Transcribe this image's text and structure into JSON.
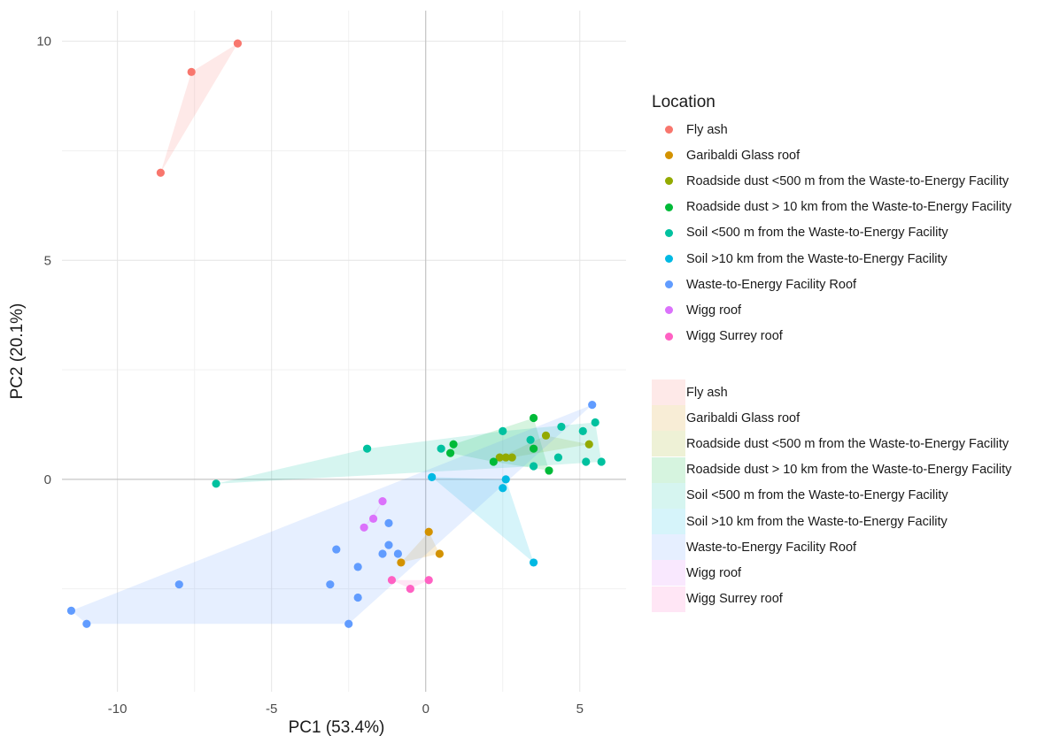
{
  "chart_data": {
    "type": "scatter",
    "xlabel": "PC1 (53.4%)",
    "ylabel": "PC2 (20.1%)",
    "xlim": [
      -11.8,
      6.5
    ],
    "ylim": [
      -4.85,
      10.7
    ],
    "x_ticks": [
      -10,
      -5,
      0,
      5
    ],
    "y_ticks": [
      0,
      5,
      10
    ],
    "x_tick_labels": [
      "-10",
      "-5",
      "0",
      "5"
    ],
    "y_tick_labels": [
      "0",
      "5",
      "10"
    ],
    "legend_title": "Location",
    "legend_placement": "right",
    "grid": true,
    "hulls": true,
    "series": [
      {
        "name": "Fly ash",
        "color": "#F8766D",
        "points": [
          [
            -6.1,
            9.95
          ],
          [
            -7.6,
            9.3
          ],
          [
            -8.6,
            7.0
          ]
        ]
      },
      {
        "name": "Garibaldi Glass roof",
        "color": "#D39200",
        "points": [
          [
            0.1,
            -1.2
          ],
          [
            0.45,
            -1.7
          ],
          [
            -0.8,
            -1.9
          ]
        ]
      },
      {
        "name": "Roadside dust <500 m from the Waste-to-Energy Facility",
        "color": "#93AA00",
        "points": [
          [
            3.9,
            1.0
          ],
          [
            5.3,
            0.8
          ],
          [
            2.4,
            0.5
          ],
          [
            2.8,
            0.5
          ],
          [
            2.6,
            0.5
          ]
        ]
      },
      {
        "name": "Roadside dust > 10 km from the Waste-to-Energy Facility",
        "color": "#00BA38",
        "points": [
          [
            3.5,
            1.4
          ],
          [
            0.9,
            0.8
          ],
          [
            0.8,
            0.6
          ],
          [
            3.5,
            0.7
          ],
          [
            2.2,
            0.4
          ],
          [
            4.0,
            0.2
          ]
        ]
      },
      {
        "name": "Soil <500 m from the Waste-to-Energy Facility",
        "color": "#00C19F",
        "points": [
          [
            -6.8,
            -0.1
          ],
          [
            -1.9,
            0.7
          ],
          [
            0.5,
            0.7
          ],
          [
            2.5,
            1.1
          ],
          [
            3.4,
            0.9
          ],
          [
            4.4,
            1.2
          ],
          [
            5.1,
            1.1
          ],
          [
            5.5,
            1.3
          ],
          [
            5.2,
            0.4
          ],
          [
            5.7,
            0.4
          ],
          [
            4.3,
            0.5
          ],
          [
            3.5,
            0.3
          ]
        ]
      },
      {
        "name": "Soil >10 km from the Waste-to-Energy Facility",
        "color": "#00B9E3",
        "points": [
          [
            0.2,
            0.05
          ],
          [
            2.6,
            -0.0
          ],
          [
            2.5,
            -0.2
          ],
          [
            3.5,
            -1.9
          ]
        ]
      },
      {
        "name": "Waste-to-Energy Facility Roof",
        "color": "#619CFF",
        "points": [
          [
            5.4,
            1.7
          ],
          [
            -1.2,
            -1.0
          ],
          [
            -1.2,
            -1.5
          ],
          [
            -0.9,
            -1.7
          ],
          [
            -1.4,
            -1.7
          ],
          [
            -2.9,
            -1.6
          ],
          [
            -2.2,
            -2.0
          ],
          [
            -8.0,
            -2.4
          ],
          [
            -3.1,
            -2.4
          ],
          [
            -2.2,
            -2.7
          ],
          [
            -11.5,
            -3.0
          ],
          [
            -11.0,
            -3.3
          ],
          [
            -2.5,
            -3.3
          ]
        ]
      },
      {
        "name": "Wigg roof",
        "color": "#DB72FB",
        "points": [
          [
            -1.4,
            -0.5
          ],
          [
            -1.7,
            -0.9
          ],
          [
            -2.0,
            -1.1
          ]
        ]
      },
      {
        "name": "Wigg Surrey roof",
        "color": "#FF61C3",
        "points": [
          [
            -1.1,
            -2.3
          ],
          [
            0.1,
            -2.3
          ],
          [
            -0.5,
            -2.5
          ]
        ]
      }
    ]
  }
}
